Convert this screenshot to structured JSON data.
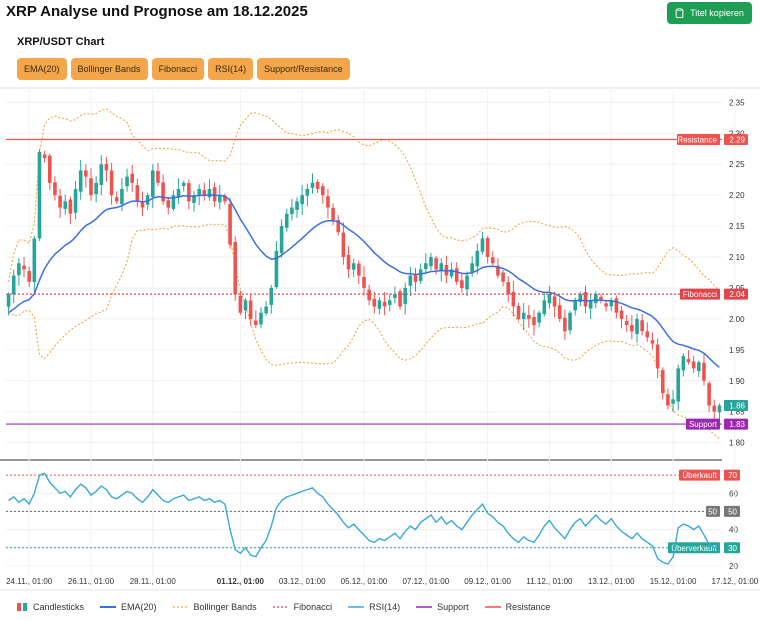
{
  "header": {
    "title": "XRP Analyse und Prognose am 18.12.2025",
    "copy_button": "Titel kopieren"
  },
  "chart_title": "XRP/USDT Chart",
  "indicator_buttons": [
    "EMA(20)",
    "Bollinger Bands",
    "Fibonacci",
    "RSI(14)",
    "Support/Resistance"
  ],
  "colors": {
    "up": "#26a69a",
    "down": "#ef5350",
    "ema": "#3b6fe0",
    "bollinger": "#f5a442",
    "fibonacci": "#e0454b",
    "rsi": "#3aa8d8",
    "support": "#9c27b0",
    "resistance": "#ef5350"
  },
  "chart_data": {
    "type": "candlestick",
    "price_axis": {
      "ticks": [
        "2.35",
        "2.30",
        "2.25",
        "2.20",
        "2.15",
        "2.10",
        "2.05",
        "2.00",
        "1.95",
        "1.90",
        "1.85",
        "1.80"
      ],
      "min": 1.78,
      "max": 2.37
    },
    "rsi_axis": {
      "ticks": [
        "60",
        "50",
        "40",
        "30",
        "20"
      ],
      "min": 15,
      "max": 75
    },
    "x_ticks": [
      {
        "label": "24.11., 01:00",
        "i": 4,
        "bold": false
      },
      {
        "label": "26.11., 01:00",
        "i": 16,
        "bold": false
      },
      {
        "label": "28.11., 01:00",
        "i": 28,
        "bold": false
      },
      {
        "label": "01.12., 01:00",
        "i": 45,
        "bold": true
      },
      {
        "label": "03.12., 01:00",
        "i": 57,
        "bold": false
      },
      {
        "label": "05.12., 01:00",
        "i": 69,
        "bold": false
      },
      {
        "label": "07.12., 01:00",
        "i": 81,
        "bold": false
      },
      {
        "label": "09.12., 01:00",
        "i": 93,
        "bold": false
      },
      {
        "label": "11.12., 01:00",
        "i": 105,
        "bold": false
      },
      {
        "label": "13.12., 01:00",
        "i": 117,
        "bold": false
      },
      {
        "label": "15.12., 01:00",
        "i": 129,
        "bold": false
      },
      {
        "label": "17.12., 01:00",
        "i": 141,
        "bold": false
      }
    ],
    "levels": {
      "resistance": {
        "label": "Resistance",
        "value": 2.29,
        "text": "2.29"
      },
      "fibonacci": {
        "label": "Fibonacci",
        "value": 2.04,
        "text": "2.04"
      },
      "support": {
        "label": "Support",
        "value": 1.83,
        "text": "1.83"
      },
      "current": {
        "value": 1.86,
        "text": "1.86"
      }
    },
    "rsi_levels": {
      "overbought": {
        "label": "Überkauft",
        "value": 70,
        "text": "70"
      },
      "mid": {
        "label": "50",
        "value": 50,
        "text": "50"
      },
      "oversold": {
        "label": "Überverkauft",
        "value": 30,
        "text": "30"
      }
    },
    "close_path": [
      2.04,
      2.07,
      2.09,
      2.08,
      2.06,
      2.13,
      2.27,
      2.26,
      2.22,
      2.2,
      2.18,
      2.19,
      2.17,
      2.21,
      2.24,
      2.23,
      2.2,
      2.22,
      2.25,
      2.24,
      2.2,
      2.19,
      2.21,
      2.23,
      2.22,
      2.19,
      2.18,
      2.2,
      2.24,
      2.22,
      2.19,
      2.18,
      2.2,
      2.21,
      2.22,
      2.19,
      2.2,
      2.21,
      2.2,
      2.21,
      2.19,
      2.2,
      2.19,
      2.12,
      2.04,
      2.01,
      2.03,
      2.0,
      1.99,
      2.01,
      2.02,
      2.05,
      2.11,
      2.15,
      2.17,
      2.18,
      2.19,
      2.2,
      2.21,
      2.22,
      2.21,
      2.2,
      2.18,
      2.16,
      2.14,
      2.1,
      2.08,
      2.09,
      2.07,
      2.05,
      2.03,
      2.02,
      2.03,
      2.02,
      2.03,
      2.04,
      2.02,
      2.05,
      2.07,
      2.06,
      2.08,
      2.09,
      2.1,
      2.08,
      2.09,
      2.07,
      2.08,
      2.06,
      2.05,
      2.07,
      2.09,
      2.11,
      2.13,
      2.1,
      2.09,
      2.07,
      2.06,
      2.04,
      2.02,
      2.0,
      2.01,
      2.0,
      1.99,
      2.01,
      2.03,
      2.04,
      2.02,
      2.0,
      1.98,
      2.01,
      2.03,
      2.04,
      2.02,
      2.03,
      2.04,
      2.03,
      2.02,
      2.03,
      2.01,
      2.0,
      1.99,
      1.98,
      2.0,
      1.98,
      1.97,
      1.96,
      1.92,
      1.88,
      1.86,
      1.87,
      1.92,
      1.94,
      1.93,
      1.92,
      1.93,
      1.9,
      1.86,
      1.85,
      1.86
    ],
    "rsi_path": [
      56,
      58,
      55,
      57,
      54,
      60,
      70,
      71,
      66,
      63,
      60,
      61,
      58,
      62,
      65,
      63,
      59,
      61,
      64,
      62,
      58,
      57,
      59,
      61,
      60,
      57,
      55,
      58,
      62,
      59,
      56,
      55,
      57,
      58,
      59,
      56,
      57,
      58,
      56,
      57,
      55,
      56,
      54,
      40,
      29,
      27,
      30,
      26,
      25,
      30,
      34,
      42,
      52,
      56,
      58,
      59,
      60,
      61,
      62,
      63,
      60,
      58,
      54,
      51,
      48,
      44,
      41,
      43,
      40,
      37,
      34,
      33,
      35,
      34,
      36,
      38,
      35,
      39,
      42,
      40,
      44,
      46,
      48,
      44,
      47,
      43,
      45,
      42,
      40,
      44,
      48,
      51,
      54,
      49,
      47,
      44,
      42,
      38,
      35,
      33,
      36,
      34,
      33,
      37,
      42,
      45,
      41,
      38,
      35,
      40,
      44,
      46,
      42,
      45,
      48,
      45,
      43,
      46,
      42,
      39,
      37,
      35,
      38,
      35,
      33,
      31,
      24,
      22,
      21,
      25,
      41,
      43,
      42,
      40,
      42,
      37,
      32,
      30,
      31
    ]
  },
  "legend": [
    {
      "key": "candles",
      "label": "Candlesticks"
    },
    {
      "key": "ema",
      "label": "EMA(20)"
    },
    {
      "key": "bollinger",
      "label": "Bollinger Bands"
    },
    {
      "key": "fibonacci",
      "label": "Fibonacci"
    },
    {
      "key": "rsi",
      "label": "RSI(14)"
    },
    {
      "key": "support",
      "label": "Support"
    },
    {
      "key": "resistance",
      "label": "Resistance"
    }
  ]
}
